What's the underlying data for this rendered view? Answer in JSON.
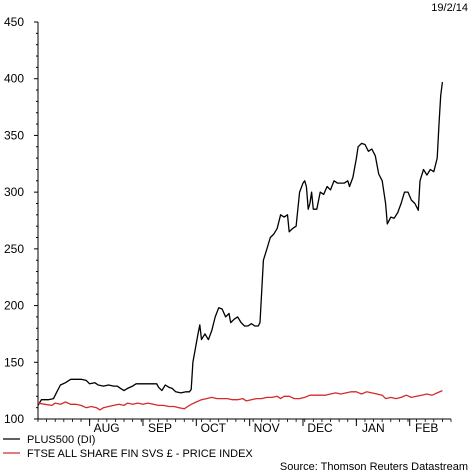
{
  "chart_data": {
    "type": "line",
    "date_stamp": "19/2/14",
    "source": "Source: Thomson Reuters Datastream",
    "ylim": [
      100,
      450
    ],
    "yticks": [
      100,
      150,
      200,
      250,
      300,
      350,
      400,
      450
    ],
    "xlim": [
      0,
      240
    ],
    "month_labels": [
      {
        "label": "AUG",
        "x": 30
      },
      {
        "label": "SEP",
        "x": 61
      },
      {
        "label": "OCT",
        "x": 92
      },
      {
        "label": "NOV",
        "x": 123
      },
      {
        "label": "DEC",
        "x": 154
      },
      {
        "label": "JAN",
        "x": 185
      },
      {
        "label": "FEB",
        "x": 216
      }
    ],
    "month_ticks": [
      30,
      61,
      92,
      123,
      154,
      185,
      216
    ],
    "grid": false,
    "legend_position": "bottom-left",
    "series": [
      {
        "name": "PLUS500 (DI)",
        "color": "#000000",
        "points": [
          [
            0,
            112
          ],
          [
            2,
            117
          ],
          [
            6,
            117
          ],
          [
            9,
            118
          ],
          [
            11,
            124
          ],
          [
            13,
            130
          ],
          [
            16,
            132
          ],
          [
            19,
            135
          ],
          [
            22,
            135
          ],
          [
            25,
            135
          ],
          [
            28,
            134
          ],
          [
            30,
            131
          ],
          [
            33,
            132
          ],
          [
            35,
            130
          ],
          [
            38,
            129
          ],
          [
            41,
            130
          ],
          [
            44,
            129
          ],
          [
            46,
            129
          ],
          [
            48,
            127
          ],
          [
            50,
            125
          ],
          [
            52,
            127
          ],
          [
            55,
            129
          ],
          [
            57,
            131
          ],
          [
            60,
            131
          ],
          [
            63,
            131
          ],
          [
            66,
            131
          ],
          [
            69,
            131
          ],
          [
            70,
            128
          ],
          [
            72,
            125
          ],
          [
            74,
            130
          ],
          [
            76,
            128
          ],
          [
            78,
            127
          ],
          [
            80,
            124
          ],
          [
            83,
            123
          ],
          [
            86,
            124
          ],
          [
            88,
            124
          ],
          [
            89,
            126
          ],
          [
            90,
            150
          ],
          [
            93,
            175
          ],
          [
            94,
            183
          ],
          [
            95,
            170
          ],
          [
            97,
            175
          ],
          [
            99,
            170
          ],
          [
            101,
            178
          ],
          [
            103,
            190
          ],
          [
            105,
            198
          ],
          [
            107,
            197
          ],
          [
            109,
            190
          ],
          [
            111,
            193
          ],
          [
            112,
            185
          ],
          [
            114,
            188
          ],
          [
            116,
            190
          ],
          [
            118,
            185
          ],
          [
            120,
            182
          ],
          [
            122,
            182
          ],
          [
            124,
            184
          ],
          [
            126,
            182
          ],
          [
            128,
            182
          ],
          [
            129,
            185
          ],
          [
            131,
            240
          ],
          [
            133,
            250
          ],
          [
            135,
            260
          ],
          [
            137,
            263
          ],
          [
            139,
            268
          ],
          [
            141,
            280
          ],
          [
            143,
            278
          ],
          [
            145,
            280
          ],
          [
            146,
            265
          ],
          [
            148,
            268
          ],
          [
            150,
            270
          ],
          [
            152,
            300
          ],
          [
            154,
            308
          ],
          [
            155,
            310
          ],
          [
            156,
            305
          ],
          [
            157,
            285
          ],
          [
            158,
            290
          ],
          [
            159,
            300
          ],
          [
            160,
            285
          ],
          [
            162,
            285
          ],
          [
            164,
            300
          ],
          [
            166,
            298
          ],
          [
            168,
            305
          ],
          [
            170,
            302
          ],
          [
            172,
            310
          ],
          [
            174,
            308
          ],
          [
            176,
            308
          ],
          [
            178,
            308
          ],
          [
            180,
            310
          ],
          [
            181,
            305
          ],
          [
            183,
            313
          ],
          [
            185,
            330
          ],
          [
            186,
            340
          ],
          [
            188,
            343
          ],
          [
            190,
            342
          ],
          [
            192,
            336
          ],
          [
            194,
            338
          ],
          [
            196,
            332
          ],
          [
            198,
            316
          ],
          [
            200,
            310
          ],
          [
            202,
            290
          ],
          [
            203,
            272
          ],
          [
            205,
            278
          ],
          [
            207,
            277
          ],
          [
            209,
            282
          ],
          [
            211,
            290
          ],
          [
            213,
            300
          ],
          [
            215,
            300
          ],
          [
            217,
            293
          ],
          [
            219,
            290
          ],
          [
            221,
            284
          ],
          [
            222,
            310
          ],
          [
            224,
            320
          ],
          [
            226,
            315
          ],
          [
            228,
            320
          ],
          [
            230,
            318
          ],
          [
            232,
            330
          ],
          [
            233,
            360
          ],
          [
            234,
            385
          ],
          [
            235,
            397
          ]
        ]
      },
      {
        "name": "FTSE ALL SHARE FIN SVS £ - PRICE INDEX",
        "color": "#d62a2a",
        "points": [
          [
            0,
            114
          ],
          [
            4,
            113
          ],
          [
            8,
            112
          ],
          [
            10,
            114
          ],
          [
            13,
            113
          ],
          [
            16,
            115
          ],
          [
            19,
            113
          ],
          [
            22,
            113
          ],
          [
            25,
            112
          ],
          [
            28,
            110
          ],
          [
            31,
            111
          ],
          [
            34,
            110
          ],
          [
            36,
            108
          ],
          [
            38,
            110
          ],
          [
            41,
            111
          ],
          [
            44,
            112
          ],
          [
            47,
            113
          ],
          [
            50,
            112
          ],
          [
            52,
            114
          ],
          [
            55,
            113
          ],
          [
            58,
            114
          ],
          [
            61,
            113
          ],
          [
            64,
            114
          ],
          [
            67,
            113
          ],
          [
            70,
            112
          ],
          [
            73,
            112
          ],
          [
            76,
            111
          ],
          [
            79,
            111
          ],
          [
            82,
            110
          ],
          [
            85,
            109
          ],
          [
            87,
            111
          ],
          [
            89,
            113
          ],
          [
            92,
            115
          ],
          [
            95,
            117
          ],
          [
            98,
            118
          ],
          [
            101,
            119
          ],
          [
            104,
            118
          ],
          [
            107,
            118
          ],
          [
            110,
            118
          ],
          [
            113,
            117
          ],
          [
            116,
            117
          ],
          [
            119,
            118
          ],
          [
            121,
            116
          ],
          [
            124,
            117
          ],
          [
            127,
            118
          ],
          [
            130,
            118
          ],
          [
            133,
            119
          ],
          [
            136,
            119
          ],
          [
            139,
            120
          ],
          [
            141,
            118
          ],
          [
            143,
            120
          ],
          [
            146,
            120
          ],
          [
            149,
            118
          ],
          [
            152,
            118
          ],
          [
            155,
            119
          ],
          [
            158,
            121
          ],
          [
            161,
            121
          ],
          [
            164,
            121
          ],
          [
            167,
            121
          ],
          [
            170,
            122
          ],
          [
            173,
            123
          ],
          [
            176,
            122
          ],
          [
            179,
            123
          ],
          [
            182,
            124
          ],
          [
            185,
            124
          ],
          [
            188,
            122
          ],
          [
            191,
            124
          ],
          [
            194,
            123
          ],
          [
            197,
            122
          ],
          [
            200,
            121
          ],
          [
            202,
            118
          ],
          [
            205,
            119
          ],
          [
            208,
            118
          ],
          [
            211,
            119
          ],
          [
            214,
            121
          ],
          [
            217,
            119
          ],
          [
            220,
            120
          ],
          [
            223,
            121
          ],
          [
            226,
            122
          ],
          [
            229,
            121
          ],
          [
            232,
            123
          ],
          [
            235,
            125
          ]
        ]
      }
    ]
  }
}
